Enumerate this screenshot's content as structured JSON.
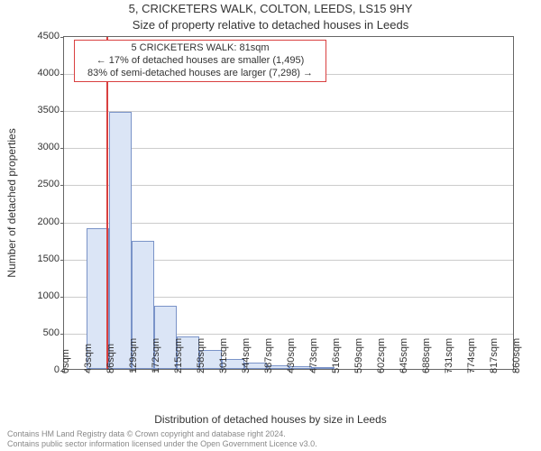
{
  "title_main": "5, CRICKETERS WALK, COLTON, LEEDS, LS15 9HY",
  "title_sub": "Size of property relative to detached houses in Leeds",
  "ylabel": "Number of detached properties",
  "xlabel": "Distribution of detached houses by size in Leeds",
  "chart": {
    "type": "histogram",
    "ylim": [
      0,
      4500
    ],
    "ytick_step": 500,
    "yticks": [
      0,
      500,
      1000,
      1500,
      2000,
      2500,
      3000,
      3500,
      4000,
      4500
    ],
    "x_tick_labels": [
      "0sqm",
      "43sqm",
      "86sqm",
      "129sqm",
      "172sqm",
      "215sqm",
      "258sqm",
      "301sqm",
      "344sqm",
      "387sqm",
      "430sqm",
      "473sqm",
      "516sqm",
      "559sqm",
      "602sqm",
      "645sqm",
      "688sqm",
      "731sqm",
      "774sqm",
      "817sqm",
      "860sqm"
    ],
    "x_tick_count": 21,
    "bar_values": [
      0,
      1900,
      3470,
      1730,
      850,
      440,
      250,
      130,
      90,
      50,
      40,
      30,
      0,
      0,
      0,
      0,
      0,
      0,
      0,
      0
    ],
    "bar_fill": "#dbe5f6",
    "bar_stroke": "#7a93c8",
    "background_color": "#ffffff",
    "grid_color": "#cccccc",
    "axis_color": "#666666",
    "marker_line_color": "#d94040",
    "marker_x_value_sqm": 81,
    "x_range_sqm": [
      0,
      860
    ]
  },
  "annotation": {
    "line1": "5 CRICKETERS WALK: 81sqm",
    "line2": "← 17% of detached houses are smaller (1,495)",
    "line3": "83% of semi-detached houses are larger (7,298) →",
    "border_color": "#d94040",
    "fontsize": 11
  },
  "footer": {
    "line1": "Contains HM Land Registry data © Crown copyright and database right 2024.",
    "line2": "Contains public sector information licensed under the Open Government Licence v3.0."
  }
}
